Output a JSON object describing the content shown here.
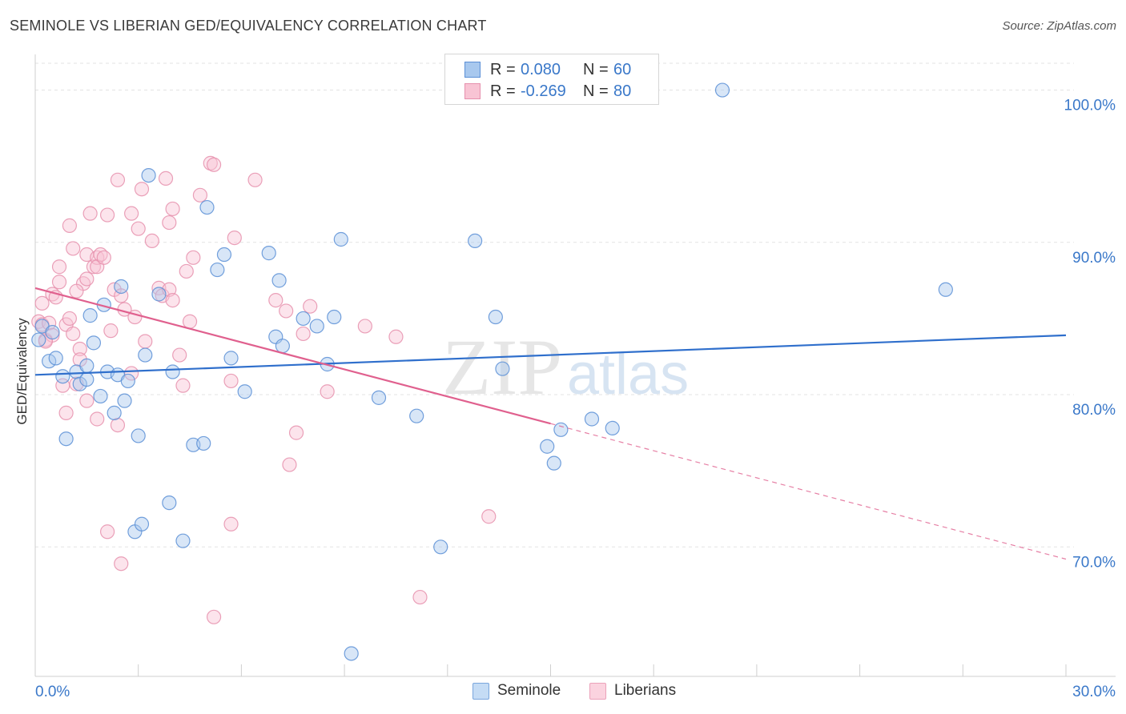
{
  "title": "SEMINOLE VS LIBERIAN GED/EQUIVALENCY CORRELATION CHART",
  "source": "Source: ZipAtlas.com",
  "legend_top": {
    "rows": [
      {
        "r_label": "R =",
        "r_value": "0.080",
        "n_label": "N =",
        "n_value": "60",
        "color": "#a8c8ee",
        "border": "#5b8fd6"
      },
      {
        "r_label": "R =",
        "r_value": "-0.269",
        "n_label": "N = ",
        "n_value": "80",
        "color": "#f8c4d4",
        "border": "#e690ad"
      }
    ]
  },
  "legend_bottom": [
    {
      "label": "Seminole",
      "color": "#c5dcf5",
      "border": "#7aa6dd"
    },
    {
      "label": "Liberians",
      "color": "#fbd3df",
      "border": "#eba1ba"
    }
  ],
  "watermark": {
    "zip": "ZIP",
    "atlas": "atlas"
  },
  "chart_data": {
    "type": "scatter",
    "ylabel": "GED/Equivalency",
    "xlabel": "",
    "xlim": [
      0,
      30
    ],
    "ylim": [
      61.5,
      102.5
    ],
    "x_tick_labels": [
      {
        "value": 0,
        "label": "0.0%"
      },
      {
        "value": 30,
        "label": "30.0%"
      }
    ],
    "y_tick_labels": [
      {
        "value": 100,
        "label": "100.0%"
      },
      {
        "value": 90,
        "label": "90.0%"
      },
      {
        "value": 80,
        "label": "80.0%"
      },
      {
        "value": 70,
        "label": "70.0%"
      }
    ],
    "x_minor_ticks": [
      3,
      6,
      9,
      12,
      15,
      18,
      21,
      24,
      27,
      30
    ],
    "grid": true,
    "legend_position": "top-center",
    "colors": {
      "seminole_fill": "#a8c8ee",
      "seminole_stroke": "#5b8fd6",
      "seminole_line": "#2f6fcc",
      "liberian_fill": "#f8c4d4",
      "liberian_stroke": "#e690ad",
      "liberian_line": "#e0608e"
    },
    "series": [
      {
        "name": "Seminole",
        "r": 0.08,
        "n": 60,
        "trend": {
          "x": [
            0,
            30
          ],
          "y": [
            81.3,
            83.9
          ],
          "dashed_from": null
        },
        "points": [
          [
            0.2,
            84.5
          ],
          [
            0.4,
            82.2
          ],
          [
            0.5,
            84.1
          ],
          [
            0.6,
            82.4
          ],
          [
            0.8,
            81.2
          ],
          [
            0.9,
            77.1
          ],
          [
            1.2,
            81.5
          ],
          [
            1.3,
            80.7
          ],
          [
            1.5,
            81.9
          ],
          [
            1.5,
            81.0
          ],
          [
            1.6,
            85.2
          ],
          [
            1.7,
            83.4
          ],
          [
            1.9,
            79.9
          ],
          [
            2.0,
            85.9
          ],
          [
            2.1,
            81.5
          ],
          [
            2.3,
            78.8
          ],
          [
            2.4,
            81.3
          ],
          [
            2.5,
            87.1
          ],
          [
            2.6,
            79.6
          ],
          [
            2.7,
            80.9
          ],
          [
            2.9,
            71.0
          ],
          [
            3.0,
            77.3
          ],
          [
            3.1,
            71.5
          ],
          [
            3.2,
            82.6
          ],
          [
            3.3,
            94.4
          ],
          [
            3.6,
            86.6
          ],
          [
            3.9,
            72.9
          ],
          [
            4.0,
            81.5
          ],
          [
            4.3,
            70.4
          ],
          [
            4.6,
            76.7
          ],
          [
            4.9,
            76.8
          ],
          [
            5.0,
            92.3
          ],
          [
            5.3,
            88.2
          ],
          [
            5.5,
            89.2
          ],
          [
            5.7,
            82.4
          ],
          [
            6.1,
            80.2
          ],
          [
            6.8,
            89.3
          ],
          [
            7.0,
            83.8
          ],
          [
            7.1,
            87.5
          ],
          [
            7.2,
            83.2
          ],
          [
            7.8,
            85.0
          ],
          [
            8.2,
            84.5
          ],
          [
            8.5,
            82.0
          ],
          [
            8.7,
            85.1
          ],
          [
            8.9,
            90.2
          ],
          [
            9.2,
            63.0
          ],
          [
            10.0,
            79.8
          ],
          [
            11.1,
            78.6
          ],
          [
            11.8,
            70.0
          ],
          [
            12.8,
            90.1
          ],
          [
            13.4,
            85.1
          ],
          [
            13.6,
            81.7
          ],
          [
            14.9,
            76.6
          ],
          [
            15.1,
            75.5
          ],
          [
            15.3,
            77.7
          ],
          [
            16.2,
            78.4
          ],
          [
            16.8,
            77.8
          ],
          [
            20.0,
            100.0
          ],
          [
            26.5,
            86.9
          ],
          [
            0.1,
            83.6
          ]
        ]
      },
      {
        "name": "Liberians",
        "r": -0.269,
        "n": 80,
        "trend": {
          "x": [
            0,
            30
          ],
          "y": [
            87.0,
            69.2
          ],
          "dashed_from": 15.0
        },
        "points": [
          [
            0.1,
            84.8
          ],
          [
            0.2,
            86.0
          ],
          [
            0.2,
            84.6
          ],
          [
            0.3,
            83.6
          ],
          [
            0.4,
            84.7
          ],
          [
            0.5,
            86.6
          ],
          [
            0.5,
            83.9
          ],
          [
            0.6,
            86.4
          ],
          [
            0.7,
            87.4
          ],
          [
            0.7,
            88.4
          ],
          [
            0.8,
            80.6
          ],
          [
            0.9,
            78.8
          ],
          [
            0.9,
            84.6
          ],
          [
            1.0,
            91.1
          ],
          [
            1.0,
            85.0
          ],
          [
            1.1,
            84.0
          ],
          [
            1.1,
            89.6
          ],
          [
            1.2,
            80.7
          ],
          [
            1.3,
            83.0
          ],
          [
            1.3,
            82.3
          ],
          [
            1.4,
            87.3
          ],
          [
            1.5,
            87.6
          ],
          [
            1.5,
            89.2
          ],
          [
            1.5,
            79.6
          ],
          [
            1.6,
            91.9
          ],
          [
            1.7,
            88.4
          ],
          [
            1.8,
            89.0
          ],
          [
            1.8,
            88.4
          ],
          [
            1.8,
            78.4
          ],
          [
            1.9,
            89.2
          ],
          [
            2.0,
            89.0
          ],
          [
            2.1,
            91.8
          ],
          [
            2.1,
            71.0
          ],
          [
            2.3,
            86.9
          ],
          [
            2.4,
            78.0
          ],
          [
            2.4,
            94.1
          ],
          [
            2.5,
            86.5
          ],
          [
            2.5,
            68.9
          ],
          [
            2.6,
            85.6
          ],
          [
            2.8,
            91.9
          ],
          [
            2.8,
            81.4
          ],
          [
            2.9,
            85.1
          ],
          [
            3.0,
            90.9
          ],
          [
            3.1,
            93.5
          ],
          [
            3.2,
            83.5
          ],
          [
            3.4,
            90.1
          ],
          [
            3.6,
            87.0
          ],
          [
            3.7,
            86.5
          ],
          [
            3.8,
            94.2
          ],
          [
            3.9,
            91.3
          ],
          [
            3.9,
            86.9
          ],
          [
            4.0,
            86.2
          ],
          [
            4.0,
            92.2
          ],
          [
            4.2,
            82.6
          ],
          [
            4.3,
            80.6
          ],
          [
            4.4,
            88.1
          ],
          [
            4.5,
            84.8
          ],
          [
            4.6,
            89.0
          ],
          [
            4.8,
            93.1
          ],
          [
            5.1,
            95.2
          ],
          [
            5.2,
            95.1
          ],
          [
            5.2,
            65.4
          ],
          [
            5.7,
            71.5
          ],
          [
            5.7,
            80.9
          ],
          [
            5.8,
            90.3
          ],
          [
            6.4,
            94.1
          ],
          [
            7.0,
            86.2
          ],
          [
            7.3,
            85.5
          ],
          [
            7.4,
            75.4
          ],
          [
            7.6,
            77.5
          ],
          [
            7.8,
            84.0
          ],
          [
            8.0,
            85.8
          ],
          [
            8.5,
            80.2
          ],
          [
            9.6,
            84.5
          ],
          [
            10.5,
            83.8
          ],
          [
            11.2,
            66.7
          ],
          [
            13.2,
            72.0
          ],
          [
            0.3,
            83.5
          ],
          [
            1.2,
            86.8
          ],
          [
            2.2,
            84.2
          ]
        ]
      }
    ]
  }
}
